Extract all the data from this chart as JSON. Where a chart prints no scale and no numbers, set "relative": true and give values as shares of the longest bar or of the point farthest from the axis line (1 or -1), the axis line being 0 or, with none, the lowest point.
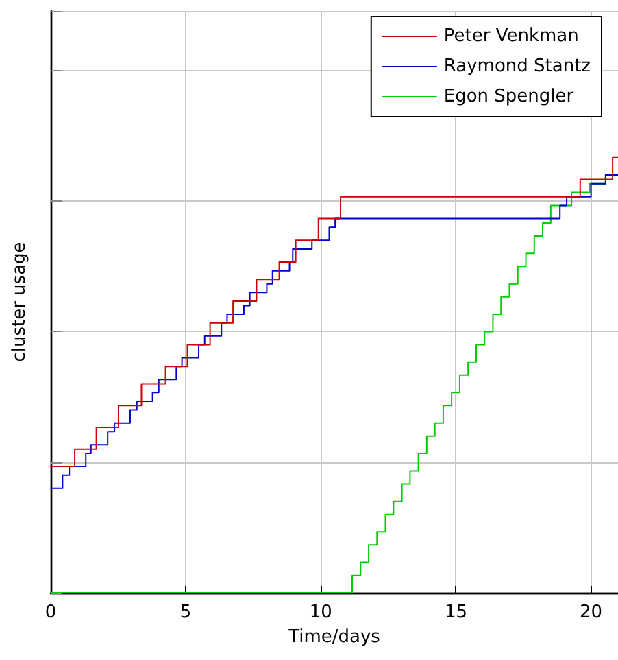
{
  "chart_data": {
    "type": "step",
    "xlabel": "Time/days",
    "ylabel": "cluster usage",
    "relative": true,
    "xlim": [
      0,
      21
    ],
    "xticks": [
      0,
      5,
      10,
      15,
      20
    ],
    "tick_labels": "x",
    "grid": true,
    "legend": "top right",
    "marker": "none",
    "line_style": "solid",
    "series": [
      {
        "name": "Peter Venkman",
        "color": "#cc0000",
        "x": [
          0,
          0.89,
          1.69,
          2.51,
          3.36,
          4.25,
          5.06,
          5.9,
          6.75,
          7.62,
          8.46,
          9.07,
          9.91,
          10.73,
          19.6,
          20.8,
          21
        ],
        "values": [
          0.29,
          0.33,
          0.38,
          0.43,
          0.48,
          0.52,
          0.57,
          0.62,
          0.67,
          0.72,
          0.76,
          0.81,
          0.86,
          0.91,
          0.95,
          1,
          1
        ]
      },
      {
        "name": "Raymond Stantz",
        "color": "#0000cc",
        "x": [
          0,
          0.44,
          0.69,
          1.3,
          1.49,
          2.11,
          2.36,
          2.94,
          3.19,
          3.77,
          4.0,
          4.65,
          4.86,
          5.48,
          5.7,
          6.32,
          6.53,
          7.15,
          7.37,
          8.0,
          8.21,
          8.84,
          8.96,
          9.67,
          10.31,
          10.53,
          18.85,
          19.1,
          20.0,
          20.54,
          21
        ],
        "values": [
          0.24,
          0.27,
          0.29,
          0.32,
          0.34,
          0.37,
          0.39,
          0.42,
          0.44,
          0.46,
          0.49,
          0.52,
          0.54,
          0.57,
          0.59,
          0.62,
          0.64,
          0.66,
          0.69,
          0.71,
          0.74,
          0.76,
          0.79,
          0.81,
          0.84,
          0.86,
          0.89,
          0.91,
          0.94,
          0.96,
          0.96
        ]
      },
      {
        "name": "Egon Spengler",
        "color": "#00cc00",
        "x": [
          0,
          11.16,
          11.47,
          11.77,
          12.08,
          12.39,
          12.69,
          13.0,
          13.3,
          13.61,
          13.92,
          14.22,
          14.53,
          14.84,
          15.14,
          15.45,
          15.75,
          16.06,
          16.37,
          16.67,
          16.98,
          17.29,
          17.59,
          17.9,
          18.21,
          18.51,
          19.28,
          19.95,
          20.54,
          21
        ],
        "values": [
          0,
          0.04,
          0.07,
          0.11,
          0.14,
          0.18,
          0.21,
          0.25,
          0.28,
          0.32,
          0.36,
          0.39,
          0.43,
          0.46,
          0.5,
          0.53,
          0.57,
          0.6,
          0.64,
          0.68,
          0.71,
          0.75,
          0.78,
          0.82,
          0.85,
          0.89,
          0.92,
          0.94,
          0.96,
          0.96
        ]
      }
    ]
  }
}
